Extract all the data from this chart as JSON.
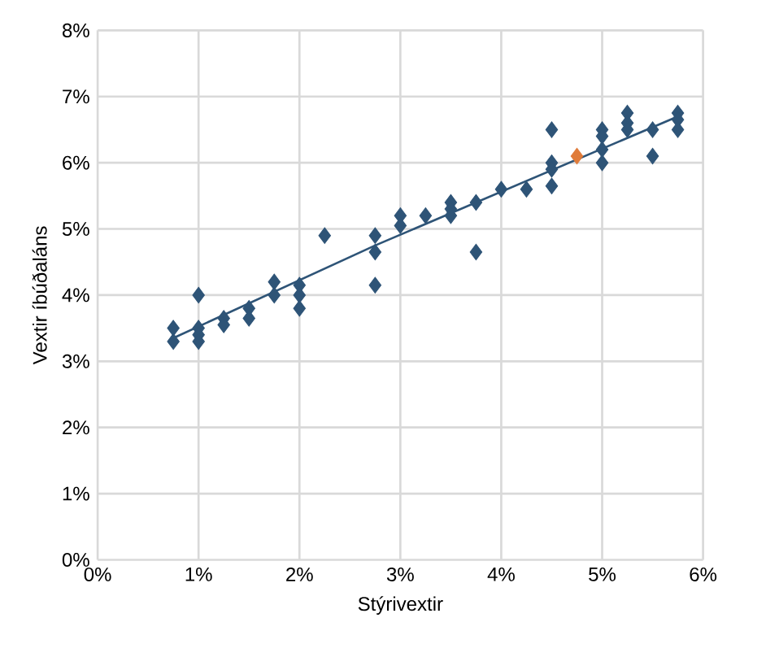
{
  "chart_data": {
    "type": "scatter",
    "xlabel": "Stýrivextir",
    "ylabel": "Vextir íbúðaláns",
    "marker": "diamond",
    "grid": true,
    "xlim": [
      0,
      6
    ],
    "ylim": [
      0,
      8
    ],
    "xticks": [
      {
        "value": 0,
        "label": "0%"
      },
      {
        "value": 1,
        "label": "1%"
      },
      {
        "value": 2,
        "label": "2%"
      },
      {
        "value": 3,
        "label": "3%"
      },
      {
        "value": 4,
        "label": "4%"
      },
      {
        "value": 5,
        "label": "5%"
      },
      {
        "value": 6,
        "label": "6%"
      }
    ],
    "yticks": [
      {
        "value": 0,
        "label": "0%"
      },
      {
        "value": 1,
        "label": "1%"
      },
      {
        "value": 2,
        "label": "2%"
      },
      {
        "value": 3,
        "label": "3%"
      },
      {
        "value": 4,
        "label": "4%"
      },
      {
        "value": 5,
        "label": "5%"
      },
      {
        "value": 6,
        "label": "6%"
      },
      {
        "value": 7,
        "label": "7%"
      },
      {
        "value": 8,
        "label": "8%"
      }
    ],
    "series": [
      {
        "color": "#2e5477",
        "x": [
          0.75,
          0.75,
          1,
          1,
          1,
          1,
          1.25,
          1.25,
          1.5,
          1.5,
          1.75,
          1.75,
          2,
          2,
          2,
          2.25,
          2.75,
          2.75,
          2.75,
          3,
          3,
          3.25,
          3.5,
          3.5,
          3.5,
          3.75,
          3.75,
          4,
          4.25,
          4.5,
          4.5,
          4.5,
          4.5,
          5,
          5,
          5,
          5,
          5.25,
          5.25,
          5.25,
          5.5,
          5.5,
          5.75,
          5.75,
          5.75
        ],
        "values": [
          3.5,
          3.3,
          4.0,
          3.5,
          3.4,
          3.3,
          3.65,
          3.55,
          3.8,
          3.65,
          4.2,
          4.0,
          4.15,
          4.0,
          3.8,
          4.9,
          4.9,
          4.65,
          4.15,
          5.2,
          5.05,
          5.2,
          5.4,
          5.3,
          5.2,
          5.4,
          4.65,
          5.6,
          5.6,
          6.5,
          6.0,
          5.9,
          5.65,
          6.5,
          6.4,
          6.2,
          6.0,
          6.75,
          6.6,
          6.5,
          6.5,
          6.1,
          6.75,
          6.65,
          6.5
        ]
      },
      {
        "color": "#e07b39",
        "x": [
          4.75
        ],
        "values": [
          6.1
        ]
      },
      {
        "type": "line",
        "color": "#2e5477",
        "marker": "none",
        "x": [
          0.75,
          2.75,
          5.75
        ],
        "values": [
          3.35,
          4.75,
          6.7
        ]
      }
    ]
  }
}
